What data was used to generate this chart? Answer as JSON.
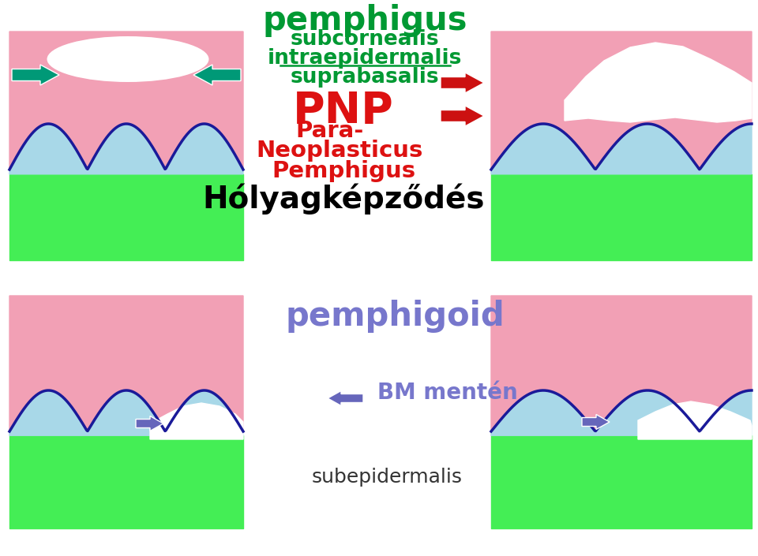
{
  "bg_color": "#ffffff",
  "pink": "#F2A0B5",
  "green": "#44EE55",
  "light_blue": "#A8D8E8",
  "dark_blue": "#1a1a99",
  "white": "#ffffff",
  "teal": "#009977",
  "red_arrow": "#CC1111",
  "purple_arrow": "#6666BB",
  "green_text": "#009933",
  "red_text": "#DD1111",
  "purple_text": "#7777CC",
  "black": "#000000",
  "t_pemphigus": "pemphigus",
  "t_subcornealis": "subcornealis",
  "t_intraepidermalis": "intraepidermalis",
  "t_suprabasalis": "suprabasalis",
  "t_PNP": "PNP",
  "t_para": "Para-",
  "t_neo": "Neoplasticus",
  "t_pemph2": "Pemphigus",
  "t_holyag": "Hólyagképződés",
  "t_pemphigoid": "pemphigoid",
  "t_BM": "BM mentén",
  "t_sub": "subepidermalis"
}
